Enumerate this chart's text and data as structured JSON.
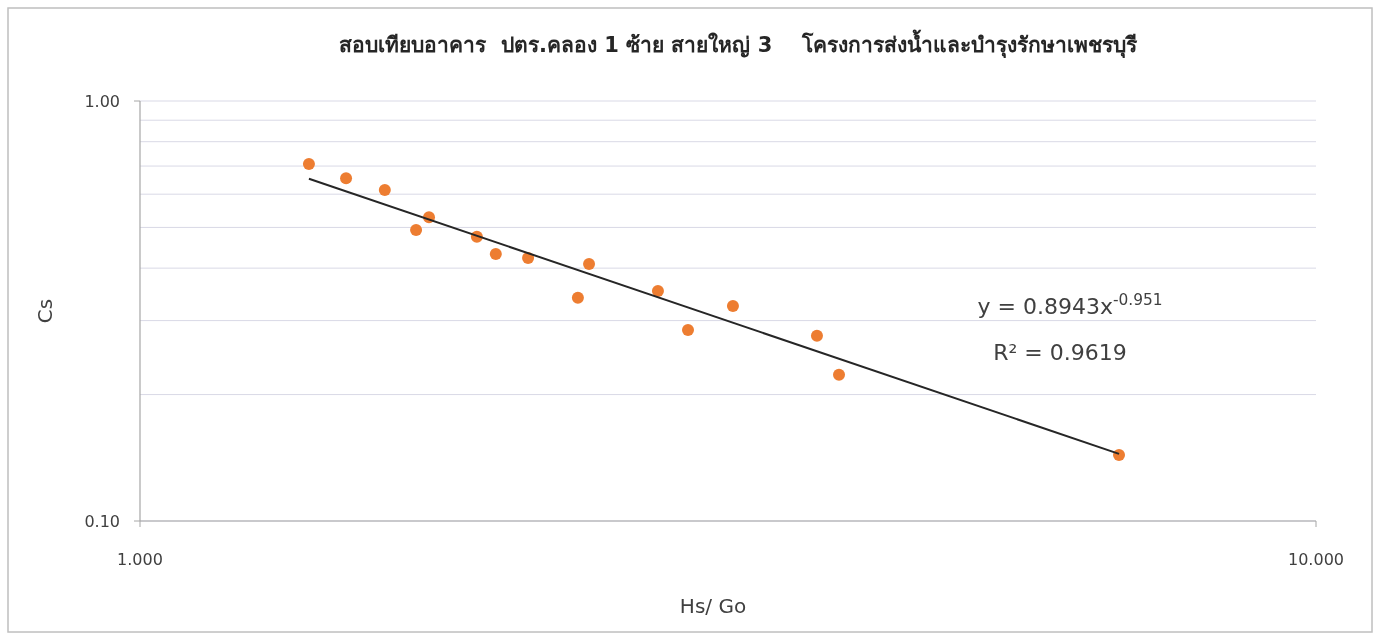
{
  "chart_data": {
    "type": "scatter",
    "title": "สอบเทียบอาคาร  ปตร.คลอง 1 ซ้าย สายใหญ่ 3    โครงการส่งน้ำและบำรุงรักษาเพชรบุรี",
    "xlabel": "Hs/ Go",
    "ylabel": "Cs",
    "log": "xy",
    "grid": "y",
    "marker": "circle",
    "xlim": [
      1,
      10
    ],
    "ylim": [
      0.1,
      1
    ],
    "xticks": [
      {
        "value": 1,
        "label": "1.000"
      },
      {
        "value": 10,
        "label": "10.000"
      }
    ],
    "yticks": [
      {
        "value": 0.1,
        "label": "0.10"
      },
      {
        "value": 0.2,
        "label": null
      },
      {
        "value": 0.3,
        "label": null
      },
      {
        "value": 0.4,
        "label": null
      },
      {
        "value": 0.5,
        "label": null
      },
      {
        "value": 0.6,
        "label": null
      },
      {
        "value": 0.7,
        "label": null
      },
      {
        "value": 0.8,
        "label": null
      },
      {
        "value": 0.9,
        "label": null
      },
      {
        "value": 1,
        "label": "1.00"
      }
    ],
    "series": [
      {
        "type": "scatter",
        "color": "#ed7d31",
        "x": [
          1.392,
          1.497,
          1.615,
          1.717,
          1.761,
          1.934,
          2.007,
          2.138,
          2.357,
          2.409,
          2.757,
          2.924,
          3.193,
          3.764,
          3.93,
          6.8
        ],
        "values": [
          0.708,
          0.655,
          0.614,
          0.493,
          0.529,
          0.475,
          0.432,
          0.423,
          0.34,
          0.409,
          0.353,
          0.285,
          0.325,
          0.276,
          0.223,
          0.1436
        ]
      },
      {
        "type": "line",
        "color": "#262626",
        "marker": "none",
        "x": [
          1.392,
          6.8
        ],
        "values": [
          0.653,
          0.1445
        ]
      }
    ],
    "annotations": [
      "y = 0.8943x$^{-0.951}$",
      "R² = 0.9619"
    ]
  }
}
